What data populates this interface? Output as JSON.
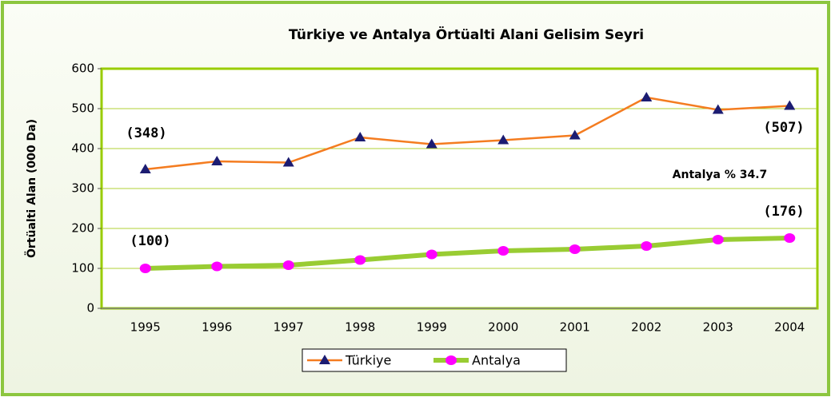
{
  "chart_data": {
    "type": "line",
    "title": "Türkiye ve Antalya Örtüalti Alani Gelisim Seyri",
    "y_label": "Örtüalti Alan (000 Da)",
    "categories": [
      "1995",
      "1996",
      "1997",
      "1998",
      "1999",
      "2000",
      "2001",
      "2002",
      "2003",
      "2004"
    ],
    "series": [
      {
        "name": "Türkiye",
        "color": "#f47c20",
        "marker_color": "#1c1c72",
        "marker": "triangle",
        "values": [
          348,
          368,
          365,
          428,
          411,
          421,
          433,
          528,
          497,
          507
        ]
      },
      {
        "name": "Antalya",
        "color": "#99cc33",
        "marker_color": "#ff00ff",
        "marker": "circle",
        "values": [
          100,
          105,
          108,
          121,
          135,
          144,
          148,
          156,
          172,
          176
        ]
      }
    ],
    "annotations": [
      "(348)",
      "(507)",
      "Antalya % 34.7",
      "(176)",
      "(100)"
    ],
    "ylim": [
      0,
      600
    ],
    "yticks": [
      0,
      100,
      200,
      300,
      400,
      500,
      600
    ],
    "grid": true,
    "legend": "bottom"
  }
}
